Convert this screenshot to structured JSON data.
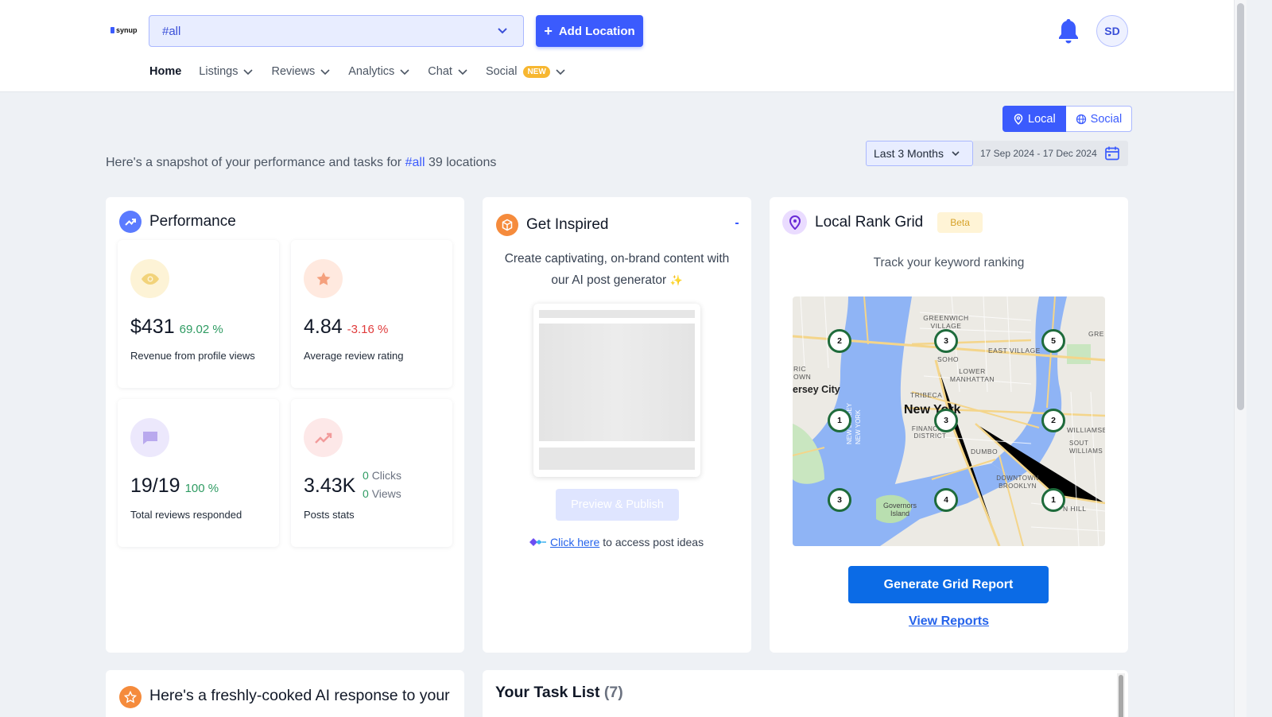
{
  "header": {
    "logo_text": "synup",
    "location_selector": {
      "value": "#all"
    },
    "add_location_label": "Add Location",
    "avatar_initials": "SD",
    "nav": [
      {
        "label": "Home",
        "active": true
      },
      {
        "label": "Listings"
      },
      {
        "label": "Reviews"
      },
      {
        "label": "Analytics"
      },
      {
        "label": "Chat"
      },
      {
        "label": "Social",
        "badge": "NEW"
      }
    ]
  },
  "view_toggle": {
    "local_label": "Local",
    "social_label": "Social",
    "selected": "Local"
  },
  "date_filter": {
    "range_label": "Last 3 Months",
    "date_span": "17 Sep 2024 - 17 Dec 2024"
  },
  "snapshot": {
    "prefix": "Here's a snapshot of your performance and tasks for",
    "tag": "#all",
    "suffix": "39 locations"
  },
  "performance": {
    "title": "Performance",
    "stats": [
      {
        "value": "$431",
        "delta": "69.02 %",
        "trend": "up",
        "label": "Revenue from profile views",
        "icon": "eye-icon"
      },
      {
        "value": "4.84",
        "delta": "-3.16 %",
        "trend": "down",
        "label": "Average review rating",
        "icon": "star-icon"
      },
      {
        "value": "19/19",
        "delta": "100 %",
        "trend": "up",
        "label": "Total reviews responded",
        "icon": "chat-icon"
      },
      {
        "value": "3.43K",
        "clicks": "0",
        "clicks_label": "Clicks",
        "views": "0",
        "views_label": "Views",
        "label": "Posts stats",
        "icon": "trend-icon"
      }
    ]
  },
  "inspire": {
    "title": "Get Inspired",
    "description_line1": "Create captivating, on-brand content with",
    "description_line2": "our AI post generator",
    "sparkle": "✨",
    "preview_publish_label": "Preview & Publish",
    "click_here_label": "Click here",
    "click_here_suffix": "to access post ideas"
  },
  "rank_grid": {
    "title": "Local Rank Grid",
    "badge": "Beta",
    "subtitle": "Track your keyword ranking",
    "map_labels": {
      "greenwich": "GREENWICH VILLAGE",
      "soho": "SOHO",
      "east_village": "EAST VILLAGE",
      "lower_manhattan": "LOWER MANHATTAN",
      "jersey_city": "ersey City",
      "tribeca": "TRIBECA",
      "new_york": "New York",
      "financial": "FINANCIAL DISTRICT",
      "dumbo": "DUMBO",
      "downtown_brooklyn": "DOWNTOWN BROOKLYN",
      "governors": "Governors Island",
      "williamsburg": "WILLIAMSB",
      "new_jersey": "NEW JERSEY NEW YORK",
      "ric": "RIC OWN",
      "gre": "GRE",
      "clinton_hill": "N HILL",
      "south_williams": "SOUT WILLIAMS"
    },
    "grid_ranks": [
      "2",
      "3",
      "5",
      "1",
      "3",
      "2",
      "3",
      "4",
      "1"
    ],
    "generate_label": "Generate Grid Report",
    "view_reports_label": "View Reports"
  },
  "ai_response": {
    "title": "Here's a freshly-cooked AI response to your"
  },
  "tasks": {
    "title": "Your Task List",
    "count": "(7)"
  },
  "colors": {
    "primary": "#3b5bfd",
    "up": "#2e9b62",
    "down": "#e03b3b",
    "grid_marker": "#1e6b3b"
  }
}
